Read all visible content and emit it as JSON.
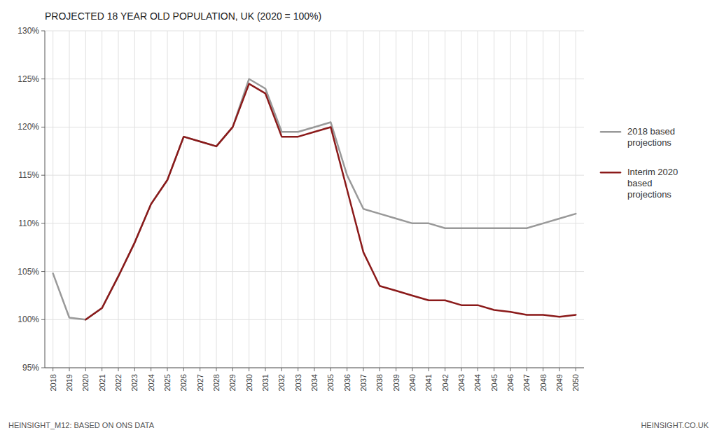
{
  "chart_data": {
    "type": "line",
    "title": "PROJECTED 18 YEAR OLD POPULATION, UK (2020 = 100%)",
    "x": [
      2018,
      2019,
      2020,
      2021,
      2022,
      2023,
      2024,
      2025,
      2026,
      2027,
      2028,
      2029,
      2030,
      2031,
      2032,
      2033,
      2034,
      2035,
      2036,
      2037,
      2038,
      2039,
      2040,
      2041,
      2042,
      2043,
      2044,
      2045,
      2046,
      2047,
      2048,
      2049,
      2050
    ],
    "series": [
      {
        "name": "2018 based\nprojections",
        "color": "#999999",
        "values": [
          104.8,
          100.2,
          100.0,
          101.2,
          104.5,
          108.0,
          112.0,
          114.5,
          119.0,
          118.5,
          118.0,
          120.0,
          125.0,
          124.0,
          119.5,
          119.5,
          120.0,
          120.5,
          115.0,
          111.5,
          111.0,
          110.5,
          110.0,
          110.0,
          109.5,
          109.5,
          109.5,
          109.5,
          109.5,
          109.5,
          110.0,
          110.5,
          111.0
        ]
      },
      {
        "name": "Interim 2020\nbased\nprojections",
        "color": "#8B1A1A",
        "values": [
          null,
          null,
          100.0,
          101.2,
          104.5,
          108.0,
          112.0,
          114.5,
          119.0,
          118.5,
          118.0,
          120.0,
          124.5,
          123.5,
          119.0,
          119.0,
          119.5,
          120.0,
          113.5,
          107.0,
          103.5,
          103.0,
          102.5,
          102.0,
          102.0,
          101.5,
          101.5,
          101.0,
          100.8,
          100.5,
          100.5,
          100.3,
          100.5
        ]
      }
    ],
    "xlim": [
      2017.5,
      2050.5
    ],
    "xticks": [
      2018,
      2019,
      2020,
      2021,
      2022,
      2023,
      2024,
      2025,
      2026,
      2027,
      2028,
      2029,
      2030,
      2031,
      2032,
      2033,
      2034,
      2035,
      2036,
      2037,
      2038,
      2039,
      2040,
      2041,
      2042,
      2043,
      2044,
      2045,
      2046,
      2047,
      2048,
      2049,
      2050
    ],
    "ylim": [
      95,
      130
    ],
    "yticks": [
      {
        "value": 95,
        "label": "95%"
      },
      {
        "value": 100,
        "label": "100%"
      },
      {
        "value": 105,
        "label": "105%"
      },
      {
        "value": 110,
        "label": "110%"
      },
      {
        "value": 115,
        "label": "115%"
      },
      {
        "value": 120,
        "label": "120%"
      },
      {
        "value": 125,
        "label": "125%"
      },
      {
        "value": 130,
        "label": "130%"
      }
    ],
    "grid": true,
    "legend": "right",
    "annotations": [
      "HEINSIGHT_M12: BASED ON ONS DATA",
      "HEINSIGHT.CO.UK"
    ]
  }
}
